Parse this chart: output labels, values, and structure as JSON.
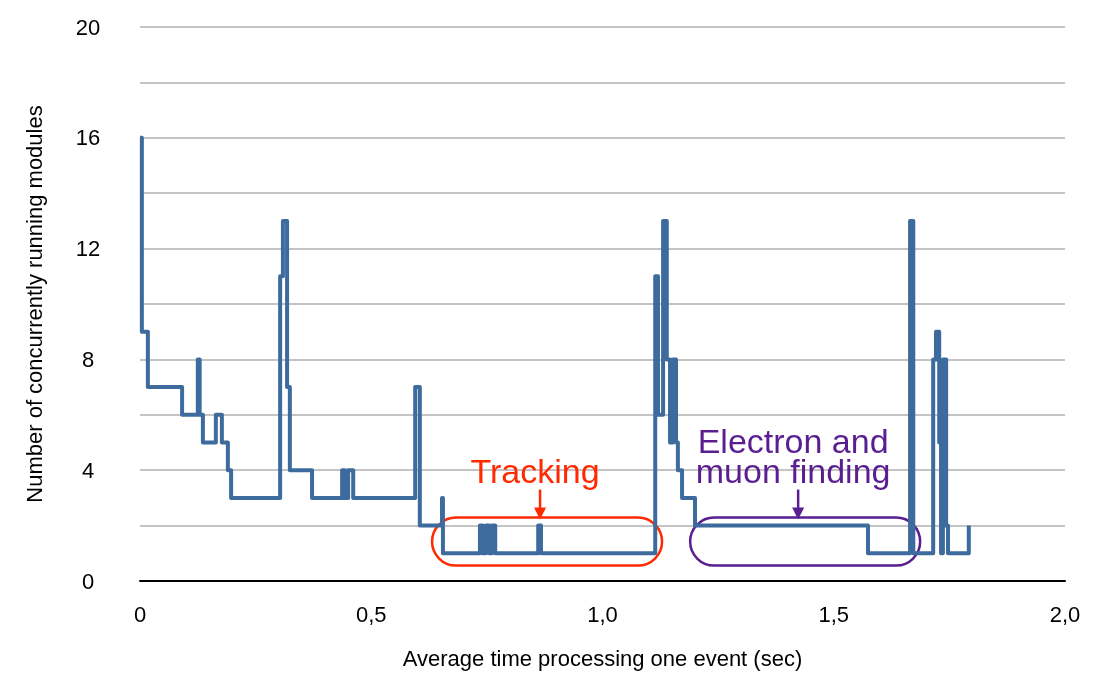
{
  "chart_data": {
    "type": "step",
    "xlabel": "Average time processing one event (sec)",
    "ylabel": "Number of concurrently running modules",
    "x": [
      0,
      0.004,
      0.017,
      0.091,
      0.125,
      0.129,
      0.136,
      0.164,
      0.177,
      0.19,
      0.197,
      0.303,
      0.309,
      0.318,
      0.324,
      0.372,
      0.437,
      0.443,
      0.45,
      0.461,
      0.595,
      0.605,
      0.653,
      0.655,
      0.735,
      0.741,
      0.748,
      0.755,
      0.761,
      0.768,
      0.861,
      0.867,
      1.114,
      1.12,
      1.131,
      1.139,
      1.146,
      1.152,
      1.159,
      1.163,
      1.172,
      1.2,
      1.574,
      1.665,
      1.672,
      1.715,
      1.721,
      1.728,
      1.732,
      1.736,
      1.743,
      1.747,
      1.792
    ],
    "series": [
      {
        "color": "#3d6b9e",
        "values": [
          16,
          9,
          7,
          6,
          8,
          6,
          5,
          6,
          5,
          4,
          3,
          11,
          13,
          7,
          4,
          3,
          4,
          3,
          4,
          3,
          7,
          2,
          3,
          1,
          2,
          1,
          2,
          1,
          2,
          1,
          2,
          1,
          11,
          6,
          13,
          8,
          5,
          8,
          5,
          4,
          3,
          2,
          1,
          13,
          1,
          8,
          9,
          5,
          1,
          8,
          2,
          1,
          2
        ]
      }
    ],
    "xlim": [
      0,
      2
    ],
    "xticks": [
      0,
      {
        "value": 0.5,
        "label": "0,5"
      },
      {
        "value": 1,
        "label": "1,0"
      },
      {
        "value": 1.5,
        "label": "1,5"
      },
      {
        "value": 2,
        "label": "2,0"
      }
    ],
    "ylim": [
      0,
      20
    ],
    "yticks": [
      0,
      {
        "value": 2,
        "label": null
      },
      4,
      {
        "value": 6,
        "label": null
      },
      8,
      {
        "value": 10,
        "label": null
      },
      12,
      {
        "value": 14,
        "label": null
      },
      16,
      {
        "value": 18,
        "label": null
      },
      20
    ],
    "grid": "y",
    "marker": "none",
    "line_style": "solid",
    "annotations": [
      {
        "text": "Tracking",
        "x": 0.865,
        "y": 2
      },
      {
        "text": "Electron and\nmuon finding",
        "x": 1.423,
        "y": 2
      }
    ]
  }
}
